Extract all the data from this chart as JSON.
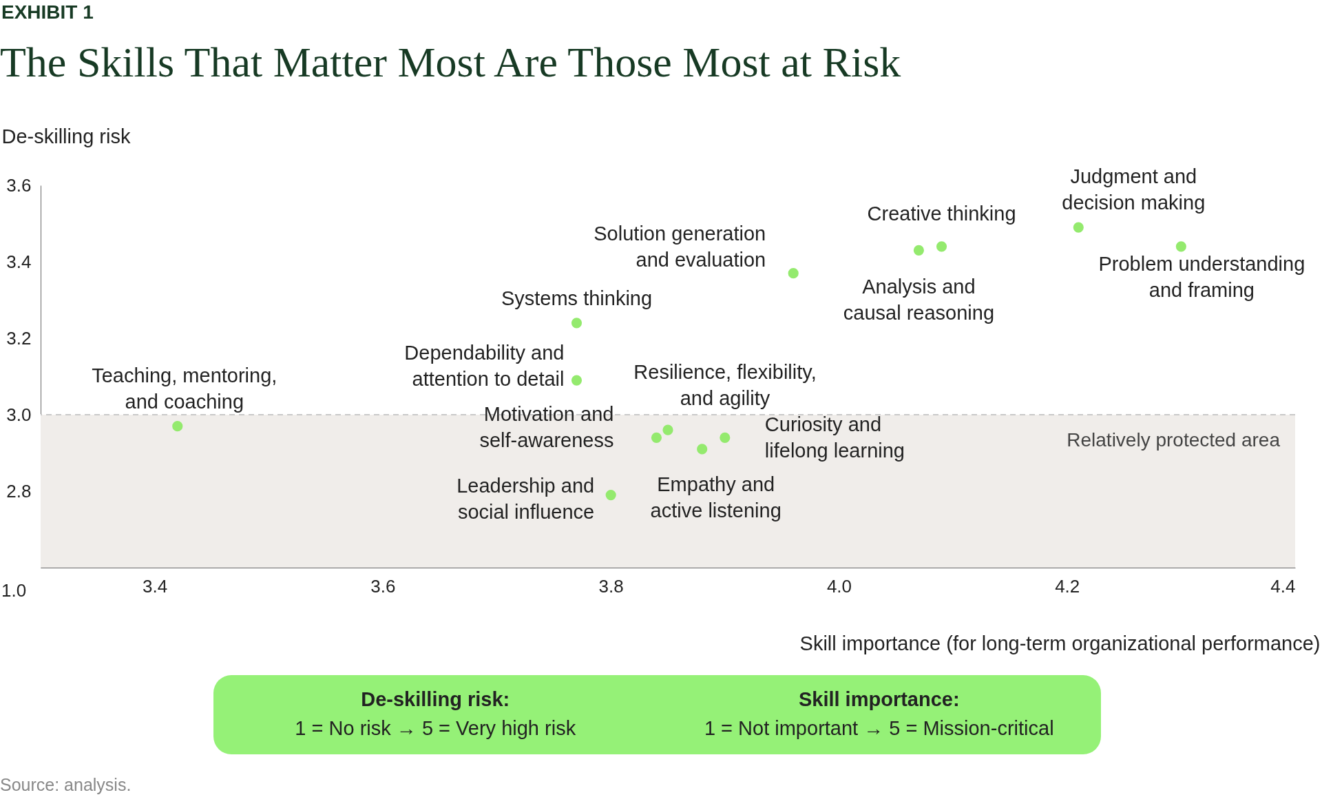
{
  "chart_data": {
    "type": "scatter",
    "title": "The Skills That Matter Most Are Those Most at Risk",
    "xlabel": "Skill importance (for long-term organizational performance)",
    "ylabel": "De-skilling risk",
    "marker": "circle",
    "grid": false,
    "xlim": [
      3.3,
      4.4
    ],
    "xticks": [
      3.4,
      3.6,
      3.8,
      {
        "value": 4,
        "label": "4.0"
      },
      4.2,
      4.4
    ],
    "ylim": [
      2.6,
      3.6
    ],
    "yticks": [
      2.8,
      {
        "value": 3,
        "label": "3.0"
      },
      3.2,
      3.4,
      3.6
    ],
    "series": [
      {
        "color": "#94ea6e",
        "x": [
          3.42,
          3.77,
          3.77,
          3.96,
          4.07,
          4.09,
          4.21,
          4.3,
          3.84,
          3.85,
          3.88,
          3.9,
          3.8
        ],
        "values": [
          2.97,
          3.09,
          3.24,
          3.37,
          3.43,
          3.44,
          3.49,
          3.44,
          2.94,
          2.96,
          2.91,
          2.94,
          2.79
        ]
      }
    ],
    "bands": [
      {
        "axis": "y",
        "from": 2.6,
        "to": 3.0,
        "label": "Relatively protected area",
        "color": "#f0edea"
      }
    ],
    "ref_lines": [
      {
        "axis": "y",
        "value": 3.0,
        "line_style": "dashed",
        "color": "#c8c8c8"
      }
    ],
    "annotations": [
      {
        "text": "Teaching, mentoring,\nand coaching",
        "x": 3.42,
        "y": 2.97
      },
      {
        "text": "Dependability and\nattention to detail",
        "x": 3.77,
        "y": 3.09
      },
      {
        "text": "Systems thinking",
        "x": 3.77,
        "y": 3.24
      },
      {
        "text": "Solution generation\nand evaluation",
        "x": 3.96,
        "y": 3.37
      },
      {
        "text": "Analysis and\ncausal reasoning",
        "x": 4.07,
        "y": 3.43
      },
      {
        "text": "Creative thinking",
        "x": 4.09,
        "y": 3.44
      },
      {
        "text": "Judgment and\ndecision making",
        "x": 4.21,
        "y": 3.49
      },
      {
        "text": "Problem understanding\nand framing",
        "x": 4.3,
        "y": 3.44
      },
      {
        "text": "Motivation and\nself-awareness",
        "x": 3.84,
        "y": 2.94
      },
      {
        "text": "Resilience, flexibility,\nand agility",
        "x": 3.85,
        "y": 2.96
      },
      {
        "text": "Empathy and\nactive listening",
        "x": 3.88,
        "y": 2.91
      },
      {
        "text": "Curiosity and\nlifelong learning",
        "x": 3.9,
        "y": 2.94
      },
      {
        "text": "Leadership and\nsocial influence",
        "x": 3.8,
        "y": 2.79
      },
      "EXHIBIT 1",
      "De-skilling risk:",
      "1 = No risk → 5 = Very high risk",
      "Skill importance:",
      "1 = Not important → 5 = Mission-critical",
      "Source: analysis.",
      "1.0"
    ]
  }
}
